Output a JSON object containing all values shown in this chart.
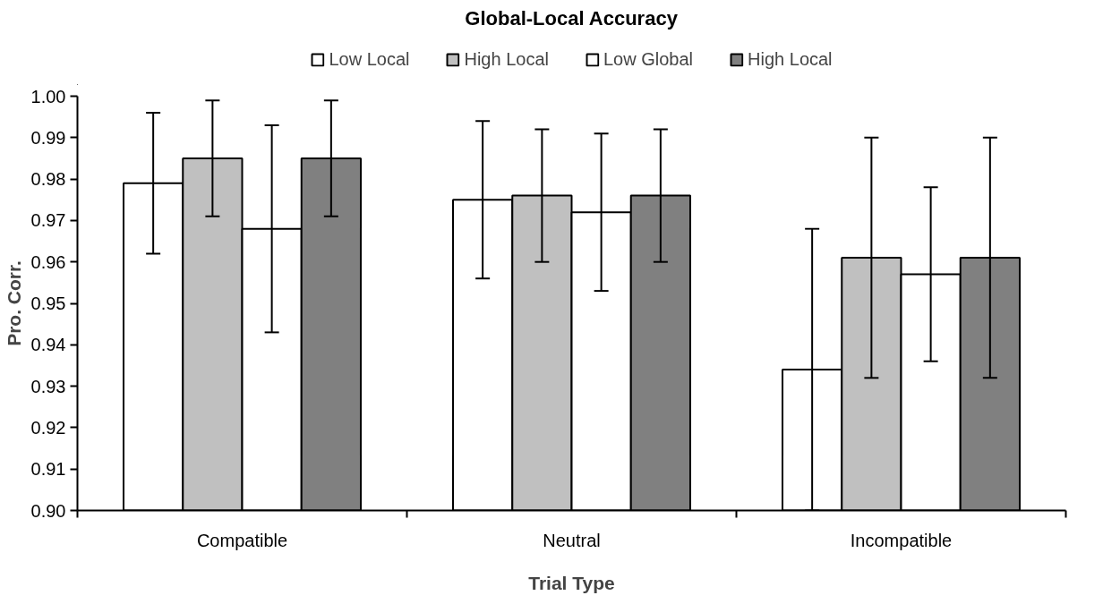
{
  "chart_data": {
    "type": "bar",
    "title": "Global-Local Accuracy",
    "xlabel": "Trial Type",
    "ylabel": "Pro. Corr.",
    "categories": [
      "Compatible",
      "Neutral",
      "Incompatible"
    ],
    "series": [
      {
        "name": "Low Local",
        "color": "#ffffff",
        "values": [
          0.979,
          0.975,
          0.934
        ],
        "errors": [
          0.017,
          0.019,
          0.034
        ]
      },
      {
        "name": "High Local",
        "color": "#c0c0c0",
        "values": [
          0.985,
          0.976,
          0.961
        ],
        "errors": [
          0.014,
          0.016,
          0.029
        ]
      },
      {
        "name": "Low Global",
        "color": "#ffffff",
        "values": [
          0.968,
          0.972,
          0.957
        ],
        "errors": [
          0.025,
          0.019,
          0.021
        ]
      },
      {
        "name": "High Local",
        "color": "#808080",
        "values": [
          0.985,
          0.976,
          0.961
        ],
        "errors": [
          0.014,
          0.016,
          0.029
        ]
      }
    ],
    "ylim": [
      0.9,
      1.0
    ],
    "yticks": [
      {
        "value": 0.9,
        "label": "0.90"
      },
      {
        "value": 0.91,
        "label": "0.91"
      },
      {
        "value": 0.92,
        "label": "0.92"
      },
      {
        "value": 0.93,
        "label": "0.93"
      },
      {
        "value": 0.94,
        "label": "0.94"
      },
      {
        "value": 0.95,
        "label": "0.95"
      },
      {
        "value": 0.96,
        "label": "0.96"
      },
      {
        "value": 0.97,
        "label": "0.97"
      },
      {
        "value": 0.98,
        "label": "0.98"
      },
      {
        "value": 0.99,
        "label": "0.99"
      },
      {
        "value": 1.0,
        "label": "1.00"
      }
    ],
    "grid": false,
    "legend": "top"
  }
}
